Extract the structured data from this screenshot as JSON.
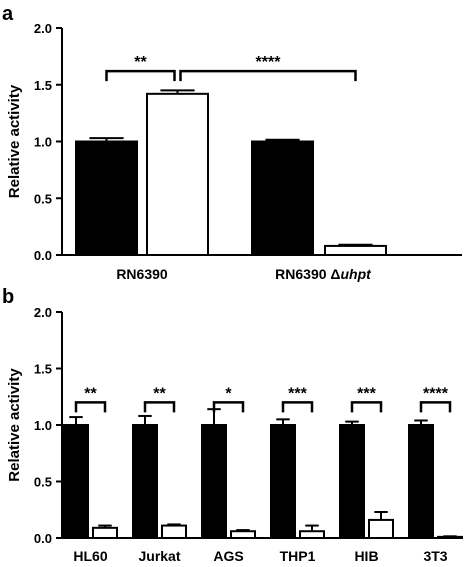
{
  "chart_data": [
    {
      "type": "bar",
      "panel": "a",
      "ylabel": "Relative activity",
      "ylim": [
        0,
        2.0
      ],
      "yticks": [
        "0.0",
        "0.5",
        "1.0",
        "1.5",
        "2.0"
      ],
      "groups": [
        {
          "label": "RN6390",
          "label_main": "RN6390",
          "label_italic": ""
        },
        {
          "label": "RN6390 Δuhpt",
          "label_main": "RN6390 Δ",
          "label_italic": "uhpt"
        }
      ],
      "series": [
        {
          "fill": "#000000",
          "values": [
            1.0,
            1.0
          ],
          "errors": [
            0.03,
            0.015
          ]
        },
        {
          "fill": "#ffffff",
          "values": [
            1.42,
            0.08
          ],
          "errors": [
            0.03,
            0.01
          ]
        }
      ],
      "significance": [
        {
          "label": "**",
          "from": [
            0,
            0
          ],
          "to": [
            0,
            1
          ],
          "y": 1.62
        },
        {
          "label": "****",
          "from": [
            0,
            1
          ],
          "to": [
            1,
            1
          ],
          "y": 1.62
        }
      ]
    },
    {
      "type": "bar",
      "panel": "b",
      "ylabel": "Relative activity",
      "ylim": [
        0,
        2.0
      ],
      "yticks": [
        "0.0",
        "0.5",
        "1.0",
        "1.5",
        "2.0"
      ],
      "categories": [
        "HL60",
        "Jurkat",
        "AGS",
        "THP1",
        "HIB",
        "3T3"
      ],
      "series": [
        {
          "fill": "#000000",
          "values": [
            1.0,
            1.0,
            1.0,
            1.0,
            1.0,
            1.0
          ],
          "errors": [
            0.07,
            0.08,
            0.14,
            0.05,
            0.03,
            0.04
          ]
        },
        {
          "fill": "#ffffff",
          "values": [
            0.09,
            0.11,
            0.06,
            0.06,
            0.16,
            0.01
          ],
          "errors": [
            0.02,
            0.01,
            0.01,
            0.05,
            0.07,
            0.005
          ]
        }
      ],
      "significance": [
        {
          "label": "**",
          "index": 0,
          "y": 1.2
        },
        {
          "label": "**",
          "index": 1,
          "y": 1.2
        },
        {
          "label": "*",
          "index": 2,
          "y": 1.2
        },
        {
          "label": "***",
          "index": 3,
          "y": 1.2
        },
        {
          "label": "***",
          "index": 4,
          "y": 1.2
        },
        {
          "label": "****",
          "index": 5,
          "y": 1.2
        }
      ]
    }
  ]
}
